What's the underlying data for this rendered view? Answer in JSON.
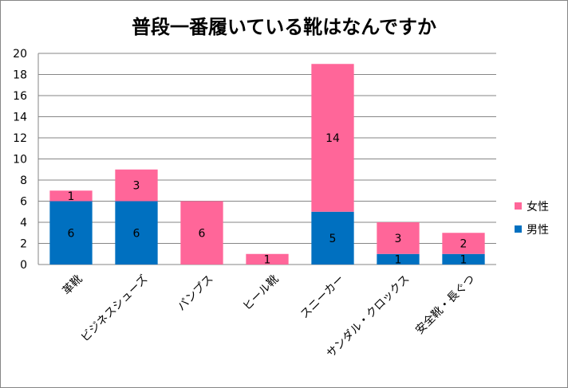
{
  "chart_data": {
    "type": "bar",
    "stacked": true,
    "title": "普段一番履いている靴はなんですか",
    "categories": [
      "革靴",
      "ビジネスシューズ",
      "パンプス",
      "ヒール靴",
      "スニーカー",
      "サンダル・クロックス",
      "安全靴・長ぐつ"
    ],
    "series": [
      {
        "name": "男性",
        "color": "#0070C0",
        "values": [
          6,
          6,
          0,
          0,
          5,
          1,
          1
        ]
      },
      {
        "name": "女性",
        "color": "#FF6699",
        "values": [
          1,
          3,
          6,
          1,
          14,
          3,
          2
        ]
      }
    ],
    "ylim": [
      0,
      20
    ],
    "yticks": [
      0,
      2,
      4,
      6,
      8,
      10,
      12,
      14,
      16,
      18,
      20
    ],
    "grid": true,
    "legend_position": "right",
    "legend_order": [
      "女性",
      "男性"
    ],
    "xlabel": "",
    "ylabel": ""
  }
}
